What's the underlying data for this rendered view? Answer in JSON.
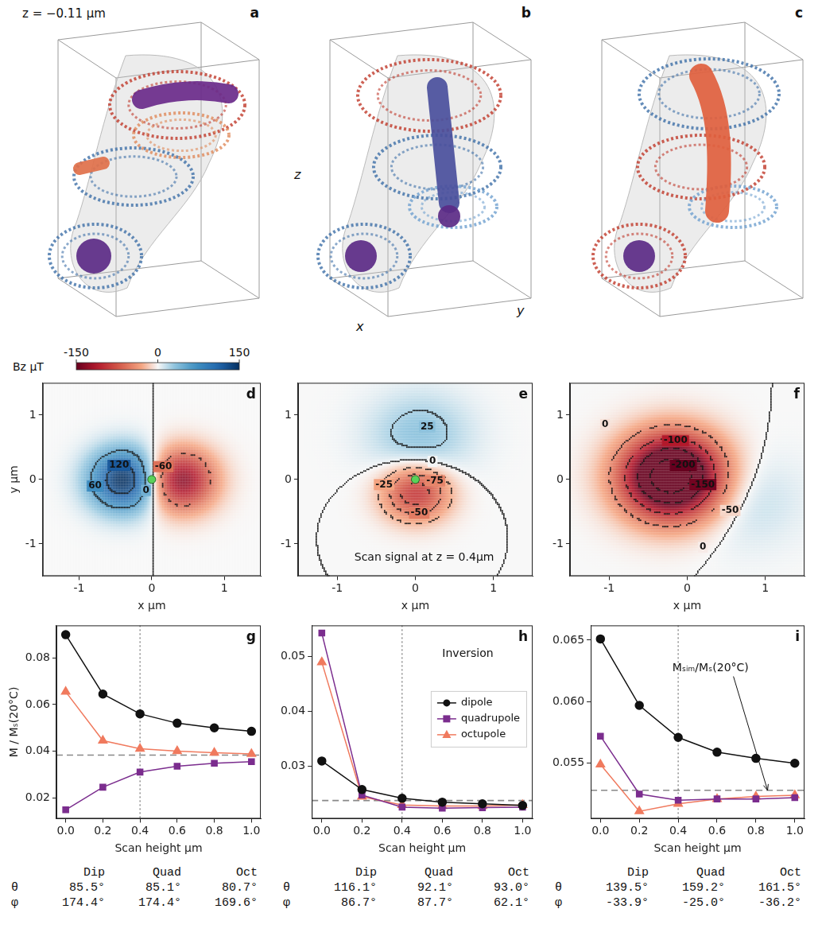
{
  "renders": [
    {
      "letter": "a",
      "text": "z = −0.11 μm"
    },
    {
      "letter": "b",
      "axis_labels": {
        "x": "x",
        "y": "y",
        "z": "z"
      }
    },
    {
      "letter": "c"
    }
  ],
  "colorbar": {
    "label": "Bz μT",
    "range": [
      -150,
      150
    ],
    "ticks": [
      -150,
      0,
      150
    ]
  },
  "chart_data": [
    {
      "type": "heatmap",
      "letter": "d",
      "xlabel": "x μm",
      "ylabel": "y μm",
      "xlim": [
        -1.5,
        1.5
      ],
      "ylim": [
        -1.5,
        1.5
      ],
      "xticks": [
        -1,
        0,
        1
      ],
      "yticks": [
        -1,
        0,
        1
      ],
      "field_lobes": [
        {
          "x": -0.38,
          "y": 0.0,
          "value": 160,
          "width": 0.33
        },
        {
          "x": 0.38,
          "y": 0.0,
          "value": -140,
          "width": 0.33
        }
      ],
      "contour_labels": [
        {
          "x": -0.78,
          "y": -0.1,
          "value": 60
        },
        {
          "x": -0.45,
          "y": 0.22,
          "value": 120
        },
        {
          "x": -0.08,
          "y": -0.17,
          "value": 0
        },
        {
          "x": 0.16,
          "y": 0.2,
          "value": -60
        }
      ],
      "markers": [
        {
          "x": 0,
          "y": 0,
          "color": "#5ad15a"
        }
      ]
    },
    {
      "type": "heatmap",
      "letter": "e",
      "xlabel": "x μm",
      "xlim": [
        -1.5,
        1.5
      ],
      "ylim": [
        -1.5,
        1.5
      ],
      "xticks": [
        -1,
        0,
        1
      ],
      "yticks": [
        -1,
        0,
        1
      ],
      "field_lobes": [
        {
          "x": 0.0,
          "y": -0.2,
          "value": -95,
          "width": 0.3
        },
        {
          "x": 0.05,
          "y": 0.7,
          "value": 35,
          "width": 0.45
        }
      ],
      "contour_labels": [
        {
          "x": 0.15,
          "y": 0.82,
          "value": 25
        },
        {
          "x": 0.22,
          "y": 0.28,
          "value": 0
        },
        {
          "x": -0.4,
          "y": -0.08,
          "value": -25
        },
        {
          "x": 0.25,
          "y": -0.02,
          "value": -75
        },
        {
          "x": 0.05,
          "y": -0.52,
          "value": -50
        }
      ],
      "markers": [
        {
          "x": 0,
          "y": 0,
          "color": "#5ad15a"
        }
      ],
      "annotations": [
        {
          "text": "Scan signal at z = 0.4μm",
          "x": -0.78,
          "y": -1.22
        }
      ]
    },
    {
      "type": "heatmap",
      "letter": "f",
      "xlabel": "x μm",
      "xlim": [
        -1.5,
        1.5
      ],
      "ylim": [
        -1.5,
        1.5
      ],
      "xticks": [
        -1,
        0,
        1
      ],
      "yticks": [
        -1,
        0,
        1
      ],
      "field_lobes": [
        {
          "x": -0.2,
          "y": 0.05,
          "value": -240,
          "width": 0.45
        },
        {
          "x": 0.7,
          "y": -0.3,
          "value": 20,
          "width": 0.5
        }
      ],
      "contour_labels": [
        {
          "x": -1.05,
          "y": 0.85,
          "value": 0
        },
        {
          "x": -0.15,
          "y": 0.6,
          "value": -100
        },
        {
          "x": 0.2,
          "y": -0.08,
          "value": -150
        },
        {
          "x": -0.05,
          "y": 0.22,
          "value": -200
        },
        {
          "x": 0.55,
          "y": -0.48,
          "value": -50
        },
        {
          "x": 0.2,
          "y": -1.05,
          "value": 0
        }
      ]
    },
    {
      "type": "line",
      "letter": "g",
      "xlabel": "Scan height μm",
      "ylabel": "M / Mₛ(20°C)",
      "xlim": [
        -0.05,
        1.05
      ],
      "ylim": [
        0.011,
        0.094
      ],
      "xticks": [
        {
          "value": 0,
          "label": "0.0"
        },
        0.2,
        0.4,
        0.6,
        0.8,
        {
          "value": 1,
          "label": "1.0"
        }
      ],
      "yticks": [
        0.02,
        0.04,
        0.06,
        0.08
      ],
      "x": [
        0,
        0.2,
        0.4,
        0.6,
        0.8,
        1
      ],
      "series": [
        {
          "color": "#111111",
          "marker": "circle",
          "values": [
            0.09,
            0.0645,
            0.056,
            0.052,
            0.05,
            0.0485
          ]
        },
        {
          "color": "#7b2d8e",
          "marker": "square",
          "values": [
            0.0148,
            0.0245,
            0.031,
            0.0335,
            0.0348,
            0.0355
          ]
        },
        {
          "color": "#f07a5e",
          "marker": "triangle",
          "values": [
            0.0655,
            0.0445,
            0.041,
            0.04,
            0.0393,
            0.0388
          ]
        }
      ],
      "reference_lines": [
        {
          "axis": "y",
          "value": 0.0383,
          "line_style": "dashed"
        },
        {
          "axis": "x",
          "value": 0.4,
          "line_style": "dotted"
        }
      ]
    },
    {
      "type": "line",
      "letter": "h",
      "xlabel": "Scan height μm",
      "xlim": [
        -0.05,
        1.05
      ],
      "ylim": [
        0.0205,
        0.0557
      ],
      "xticks": [
        {
          "value": 0,
          "label": "0.0"
        },
        0.2,
        0.4,
        0.6,
        0.8,
        {
          "value": 1,
          "label": "1.0"
        }
      ],
      "yticks": [
        0.03,
        0.04,
        0.05
      ],
      "x": [
        0,
        0.2,
        0.4,
        0.6,
        0.8,
        1
      ],
      "series": [
        {
          "name": "dipole",
          "color": "#111111",
          "marker": "circle",
          "values": [
            0.031,
            0.0258,
            0.0242,
            0.0235,
            0.0232,
            0.0229
          ]
        },
        {
          "name": "quadrupole",
          "color": "#7b2d8e",
          "marker": "square",
          "values": [
            0.0543,
            0.0248,
            0.0226,
            0.0224,
            0.0225,
            0.0226
          ]
        },
        {
          "name": "octupole",
          "color": "#f07a5e",
          "marker": "triangle",
          "values": [
            0.049,
            0.0245,
            0.023,
            0.0228,
            0.0228,
            0.023
          ]
        }
      ],
      "legend": "right",
      "annotations": [
        {
          "text": "Inversion",
          "x": 0.6,
          "y": 0.0505
        }
      ],
      "reference_lines": [
        {
          "axis": "y",
          "value": 0.0238,
          "line_style": "dashed"
        },
        {
          "axis": "x",
          "value": 0.4,
          "line_style": "dotted"
        }
      ]
    },
    {
      "type": "line",
      "letter": "i",
      "xlabel": "Scan height μm",
      "xlim": [
        -0.05,
        1.05
      ],
      "ylim": [
        0.0505,
        0.0662
      ],
      "xticks": [
        {
          "value": 0,
          "label": "0.0"
        },
        0.2,
        0.4,
        0.6,
        0.8,
        {
          "value": 1,
          "label": "1.0"
        }
      ],
      "yticks": [
        0.055,
        {
          "value": 0.06,
          "label": "0.060"
        },
        0.065
      ],
      "x": [
        0,
        0.2,
        0.4,
        0.6,
        0.8,
        1
      ],
      "series": [
        {
          "color": "#111111",
          "marker": "circle",
          "values": [
            0.0651,
            0.0597,
            0.0571,
            0.0559,
            0.0554,
            0.055
          ]
        },
        {
          "color": "#7b2d8e",
          "marker": "square",
          "values": [
            0.0572,
            0.0525,
            0.052,
            0.0521,
            0.0521,
            0.0522
          ]
        },
        {
          "color": "#f07a5e",
          "marker": "triangle",
          "values": [
            0.0549,
            0.0511,
            0.0517,
            0.0521,
            0.0523,
            0.0524
          ]
        }
      ],
      "annotations": [
        {
          "text": "Mₛᵢₘ/Mₛ(20°C)",
          "x": 0.37,
          "y": 0.0627,
          "arrow_to": {
            "x": 0.86,
            "y": 0.0528
          }
        }
      ],
      "reference_lines": [
        {
          "axis": "y",
          "value": 0.0528,
          "line_style": "dashed"
        },
        {
          "axis": "x",
          "value": 0.4,
          "line_style": "dotted"
        }
      ]
    }
  ],
  "angle_tables": [
    {
      "columns": [
        "Dip",
        "Quad",
        "Oct"
      ],
      "rows": [
        {
          "label": "θ",
          "values": [
            "85.5°",
            "85.1°",
            "80.7°"
          ]
        },
        {
          "label": "φ",
          "values": [
            "174.4°",
            "174.4°",
            "169.6°"
          ]
        }
      ]
    },
    {
      "columns": [
        "Dip",
        "Quad",
        "Oct"
      ],
      "rows": [
        {
          "label": "θ",
          "values": [
            "116.1°",
            "92.1°",
            "93.0°"
          ]
        },
        {
          "label": "φ",
          "values": [
            "86.7°",
            "87.7°",
            "62.1°"
          ]
        }
      ]
    },
    {
      "columns": [
        "Dip",
        "Quad",
        "Oct"
      ],
      "rows": [
        {
          "label": "θ",
          "values": [
            "139.5°",
            "159.2°",
            "161.5°"
          ]
        },
        {
          "label": "φ",
          "values": [
            "-33.9°",
            "-25.0°",
            "-36.2°"
          ]
        }
      ]
    }
  ]
}
